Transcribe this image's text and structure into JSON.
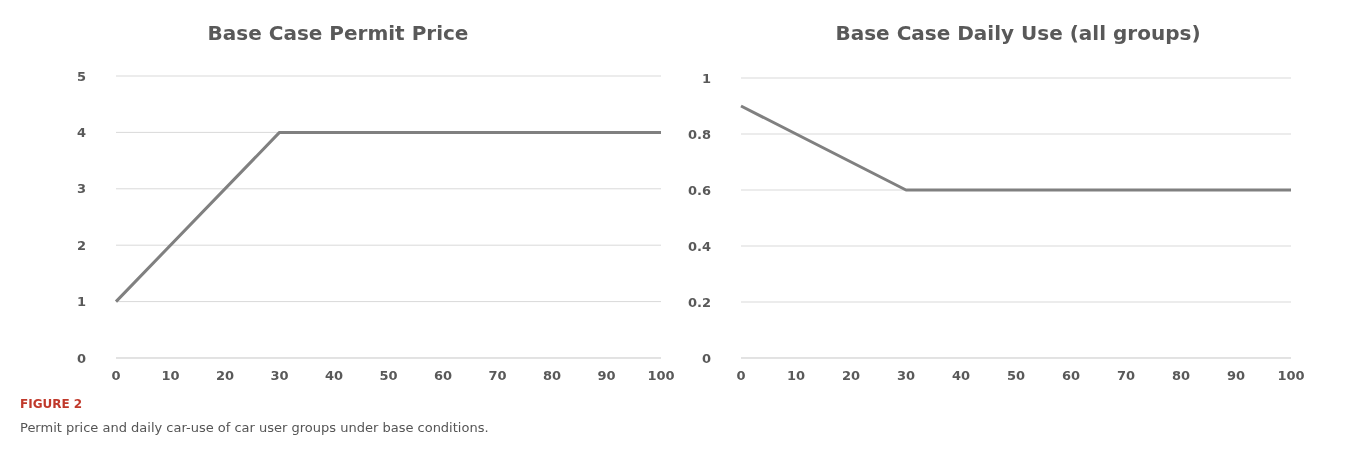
{
  "chart_data": [
    {
      "type": "line",
      "title": "Base Case Permit Price",
      "x": [
        0,
        30,
        100
      ],
      "series": [
        {
          "color": "#808080",
          "values": [
            1,
            4,
            4
          ]
        }
      ],
      "xlim": [
        0,
        100
      ],
      "xticks": [
        0,
        10,
        20,
        30,
        40,
        50,
        60,
        70,
        80,
        90,
        100
      ],
      "ylim": [
        0,
        5
      ],
      "yticks": [
        0,
        1,
        2,
        3,
        4,
        5
      ],
      "grid": "y",
      "marker": "none",
      "line_style": "solid",
      "annotations": [
        "FIGURE 2",
        "Permit price and daily car-use of car user groups under base conditions."
      ]
    },
    {
      "type": "line",
      "title": "Base Case Daily Use (all groups)",
      "x": [
        0,
        30,
        100
      ],
      "series": [
        {
          "color": "#808080",
          "values": [
            0.9,
            0.6,
            0.6
          ]
        }
      ],
      "xlim": [
        0,
        100
      ],
      "xticks": [
        0,
        10,
        20,
        30,
        40,
        50,
        60,
        70,
        80,
        90,
        100
      ],
      "ylim": [
        0,
        1
      ],
      "yticks": [
        0,
        0.2,
        0.4,
        0.6,
        0.8,
        1
      ],
      "grid": "y",
      "marker": "none",
      "line_style": "solid"
    }
  ]
}
